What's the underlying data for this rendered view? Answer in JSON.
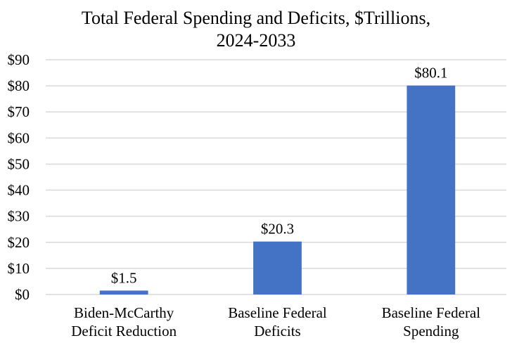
{
  "chart_data": {
    "type": "bar",
    "title_lines": [
      "Total Federal Spending and Deficits, $Trillions,",
      "2024-2033"
    ],
    "title": "Total Federal Spending and Deficits, $Trillions, 2024-2033",
    "categories": [
      [
        "Biden-McCarthy",
        "Deficit Reduction"
      ],
      [
        "Baseline Federal",
        "Deficits"
      ],
      [
        "Baseline Federal",
        "Spending"
      ]
    ],
    "values": [
      1.5,
      20.3,
      80.1
    ],
    "data_labels": [
      "$1.5",
      "$20.3",
      "$80.1"
    ],
    "yticks": [
      0,
      10,
      20,
      30,
      40,
      50,
      60,
      70,
      80,
      90
    ],
    "ytick_labels": [
      "$0",
      "$10",
      "$20",
      "$30",
      "$40",
      "$50",
      "$60",
      "$70",
      "$80",
      "$90"
    ],
    "ylim": [
      0,
      90
    ],
    "xlabel": "",
    "ylabel": "",
    "grid": true,
    "legend": "none",
    "bar_color": "#4472C4",
    "grid_color": "#D9D9D9"
  }
}
